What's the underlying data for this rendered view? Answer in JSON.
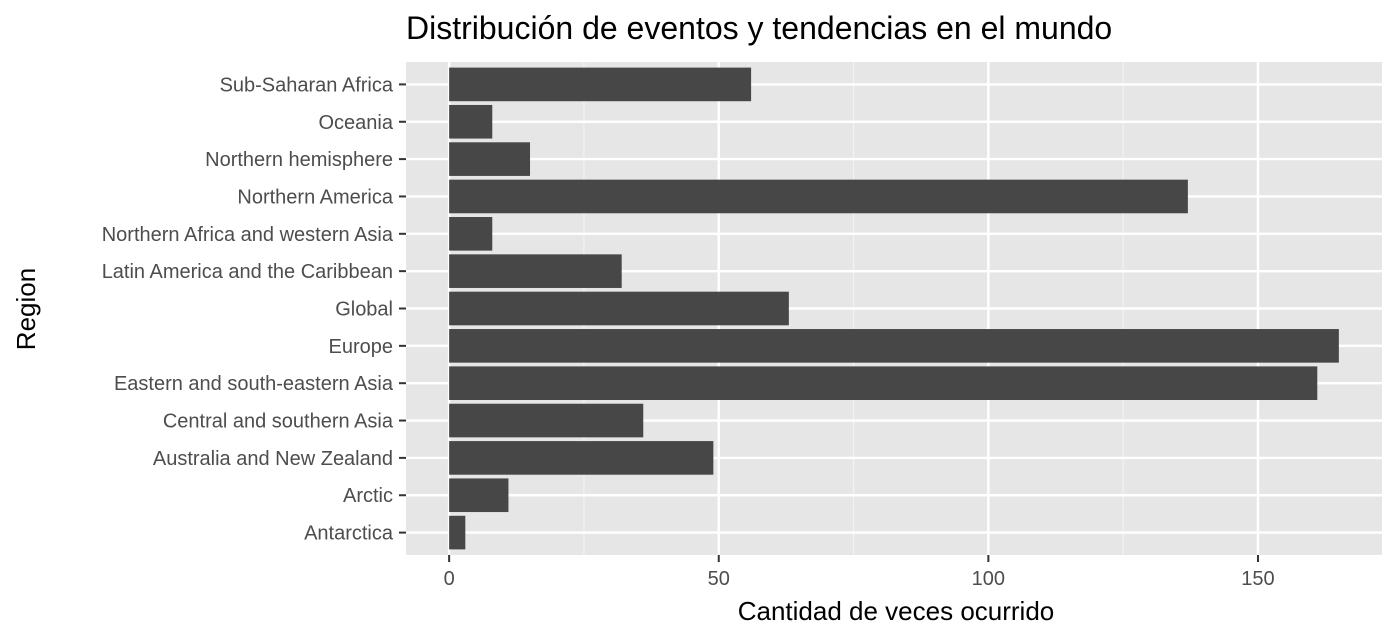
{
  "chart_data": {
    "type": "bar",
    "orientation": "horizontal",
    "title": "Distribución de eventos y tendencias en el mundo",
    "xlabel": "Cantidad de veces ocurrido",
    "ylabel": "Region",
    "categories": [
      "Antarctica",
      "Arctic",
      "Australia and New Zealand",
      "Central and southern Asia",
      "Eastern and south-eastern Asia",
      "Europe",
      "Global",
      "Latin America and the Caribbean",
      "Northern Africa and western Asia",
      "Northern America",
      "Northern hemisphere",
      "Oceania",
      "Sub-Saharan Africa"
    ],
    "values": [
      3,
      11,
      49,
      36,
      161,
      165,
      63,
      32,
      8,
      137,
      15,
      8,
      56
    ],
    "xlim": [
      -8,
      173
    ],
    "xticks": [
      0,
      50,
      100,
      150
    ],
    "xtick_labels": [
      "0",
      "50",
      "100",
      "150"
    ],
    "grid": true,
    "legend": "none",
    "colors": {
      "bar": "#474747",
      "panel": "#e6e6e6",
      "grid_major": "#ffffff",
      "grid_minor": "#f2f2f2",
      "tick_text": "#4d4d4d",
      "title_text": "#000000"
    }
  }
}
